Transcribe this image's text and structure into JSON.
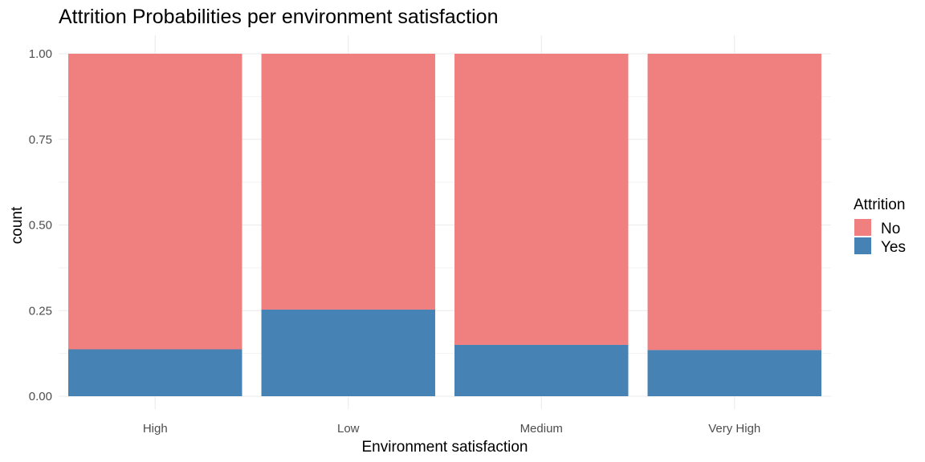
{
  "chart_data": {
    "type": "bar",
    "stacked": true,
    "title": "Attrition Probabilities per environment satisfaction",
    "xlabel": "Environment satisfaction",
    "ylabel": "count",
    "categories": [
      "High",
      "Low",
      "Medium",
      "Very High"
    ],
    "series": [
      {
        "name": "No",
        "color": "#F08080",
        "values": [
          0.863,
          0.747,
          0.85,
          0.865
        ]
      },
      {
        "name": "Yes",
        "color": "#4682B4",
        "values": [
          0.137,
          0.253,
          0.15,
          0.135
        ]
      }
    ],
    "ylim": [
      0,
      1
    ],
    "yticks": [
      "0.00",
      "0.25",
      "0.50",
      "0.75",
      "1.00"
    ],
    "ytick_values": [
      0,
      0.25,
      0.5,
      0.75,
      1.0
    ],
    "grid": true,
    "legend": {
      "title": "Attrition",
      "placement": "right"
    }
  }
}
